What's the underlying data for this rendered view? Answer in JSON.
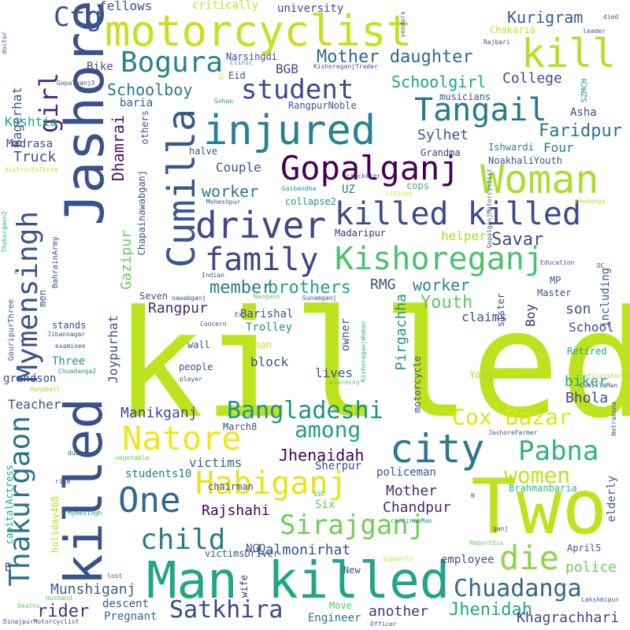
{
  "words": [
    {
      "text": "killed",
      "color": "#bde21e"
    },
    {
      "text": "Two",
      "color": "#bde21e"
    },
    {
      "text": "Man killed",
      "color": "#21a685"
    },
    {
      "text": "Jashore",
      "color": "#3b518b"
    },
    {
      "text": "killed",
      "color": "#3a528b"
    },
    {
      "text": "motorcyclist",
      "color": "#c6e021"
    },
    {
      "text": "injured",
      "color": "#26828e"
    },
    {
      "text": "kill",
      "color": "#b5de2b"
    },
    {
      "text": "Cumilla",
      "color": "#38588c"
    },
    {
      "text": "Gopalganj",
      "color": "#440154"
    },
    {
      "text": "Woman",
      "color": "#addc30"
    },
    {
      "text": "killed killed",
      "color": "#3e4a89"
    },
    {
      "text": "Kishoreganj",
      "color": "#4ac16d"
    },
    {
      "text": "driver",
      "color": "#3f4788"
    },
    {
      "text": "Tangail",
      "color": "#2a788e"
    },
    {
      "text": "family",
      "color": "#414487"
    },
    {
      "text": "Mymensingh",
      "color": "#3b528b"
    },
    {
      "text": "Thakurgaon",
      "color": "#2c728e"
    },
    {
      "text": "Bogura",
      "color": "#26828e"
    },
    {
      "text": "student",
      "color": "#3e4989"
    },
    {
      "text": "city",
      "color": "#2a788e"
    },
    {
      "text": "Habiganj",
      "color": "#e7e419"
    },
    {
      "text": "Natore",
      "color": "#f1e51d"
    },
    {
      "text": "One",
      "color": "#31688e"
    },
    {
      "text": "Sirajganj",
      "color": "#6ece58"
    },
    {
      "text": "Cox Bazar",
      "color": "#dfe318"
    },
    {
      "text": "Bangladeshi",
      "color": "#21918c"
    },
    {
      "text": "Chuadanga",
      "color": "#31688e"
    },
    {
      "text": "die",
      "color": "#8bd646"
    },
    {
      "text": "Satkhira",
      "color": "#3e4989"
    },
    {
      "text": "Ctg",
      "color": "#3b528b"
    },
    {
      "text": "Pabna",
      "color": "#2fb47c"
    },
    {
      "text": "child",
      "color": "#287c8e"
    },
    {
      "text": "women",
      "color": "#c2df23"
    },
    {
      "text": "among",
      "color": "#1fa088"
    },
    {
      "text": "girl",
      "color": "#482979"
    },
    {
      "text": "Jhenaidah",
      "color": "#440154"
    },
    {
      "text": "Mother daughter",
      "color": "#31688e"
    },
    {
      "text": "Kurigram",
      "color": "#35608d"
    },
    {
      "text": "Schoolgirl",
      "color": "#20a386"
    },
    {
      "text": "College",
      "color": "#3d4e8a"
    },
    {
      "text": "Faridpur",
      "color": "#2c728e"
    },
    {
      "text": "Schoolboy",
      "color": "#2a788e"
    },
    {
      "text": "Sylhet",
      "color": "#39568c"
    },
    {
      "text": "Dhamrai",
      "color": "#48186a"
    },
    {
      "text": "worker",
      "color": "#2a788e"
    },
    {
      "text": "Savar",
      "color": "#3e4989"
    },
    {
      "text": "member",
      "color": "#2a788e"
    },
    {
      "text": "brothers",
      "color": "#1f9e89"
    },
    {
      "text": "RMG",
      "color": "#3b528b"
    },
    {
      "text": "worker",
      "color": "#26828e"
    },
    {
      "text": "Youth",
      "color": "#5ec962"
    },
    {
      "text": "Rangpur",
      "color": "#482878"
    },
    {
      "text": "Gazipur",
      "color": "#6ece58"
    },
    {
      "text": "Pirgachha",
      "color": "#21918c"
    },
    {
      "text": "Manikganj",
      "color": "#3e4989"
    },
    {
      "text": "Mother",
      "color": "#472c7a"
    },
    {
      "text": "Chandpur",
      "color": "#482878"
    },
    {
      "text": "Rajshahi",
      "color": "#440154"
    },
    {
      "text": "Lalmonirhat",
      "color": "#3b528b"
    },
    {
      "text": "Munshiganj",
      "color": "#355f8d"
    },
    {
      "text": "rider",
      "color": "#46337e"
    },
    {
      "text": "Jhenidah",
      "color": "#22a884"
    },
    {
      "text": "another",
      "color": "#46327e"
    },
    {
      "text": "Khagrachhari",
      "color": "#414487"
    },
    {
      "text": "Engineer",
      "color": "#2c728e"
    },
    {
      "text": "Pregnant",
      "color": "#31688e"
    },
    {
      "text": "descent",
      "color": "#39568c"
    },
    {
      "text": "employee",
      "color": "#3a538b"
    },
    {
      "text": "police",
      "color": "#6ece58"
    },
    {
      "text": "Teacher",
      "color": "#3b528b"
    },
    {
      "text": "Bhola",
      "color": "#3f4889"
    },
    {
      "text": "biker",
      "color": "#20a486"
    },
    {
      "text": "School",
      "color": "#3e4c8a"
    },
    {
      "text": "son",
      "color": "#3b528b"
    },
    {
      "text": "including",
      "color": "#39568c"
    },
    {
      "text": "Boy",
      "color": "#472d7b"
    },
    {
      "text": "Truck",
      "color": "#3b528b"
    },
    {
      "text": "Bagerhat",
      "color": "#38598c"
    },
    {
      "text": "Kushtia",
      "color": "#22a884"
    },
    {
      "text": "Madrasa",
      "color": "#3e4989"
    },
    {
      "text": "BGB",
      "color": "#3e4989"
    },
    {
      "text": "Bike",
      "color": "#3e4c8a"
    },
    {
      "text": "fellows",
      "color": "#3b528b"
    },
    {
      "text": "baria",
      "color": "#39568c"
    },
    {
      "text": "Couple",
      "color": "#3b528b"
    },
    {
      "text": "UZ",
      "color": "#2a788e"
    },
    {
      "text": "Four",
      "color": "#2a788e"
    },
    {
      "text": "Eid",
      "color": "#3e4989"
    },
    {
      "text": "university",
      "color": "#3e4989"
    },
    {
      "text": "critically",
      "color": "#c8e020"
    },
    {
      "text": "Chakaria",
      "color": "#c2df23"
    },
    {
      "text": "Narsingdi",
      "color": "#3e4989"
    },
    {
      "text": "cops",
      "color": "#2fb47c"
    },
    {
      "text": "Grandma",
      "color": "#414487"
    },
    {
      "text": "Ishwardi",
      "color": "#26828e"
    },
    {
      "text": "NoakhaliYouth",
      "color": "#3b528b"
    },
    {
      "text": "Asha",
      "color": "#3e4989"
    },
    {
      "text": "musicians",
      "color": "#3b528b"
    },
    {
      "text": "RangpurNoble",
      "color": "#3b528b"
    },
    {
      "text": "helper",
      "color": "#addc30"
    },
    {
      "text": "collapse2",
      "color": "#21918c"
    },
    {
      "text": "Madaripur",
      "color": "#472d7b"
    },
    {
      "text": "Seven",
      "color": "#3b528b"
    },
    {
      "text": "Barishal",
      "color": "#3b528b"
    },
    {
      "text": "Trolley",
      "color": "#21918c"
    },
    {
      "text": "claims",
      "color": "#3b528b"
    },
    {
      "text": "owner",
      "color": "#3b528b"
    },
    {
      "text": "block",
      "color": "#3b528b"
    },
    {
      "text": "lives",
      "color": "#39568c"
    },
    {
      "text": "Oman",
      "color": "#c8e020"
    },
    {
      "text": "wall",
      "color": "#3b528b"
    },
    {
      "text": "people",
      "color": "#3b528b"
    },
    {
      "text": "Three",
      "color": "#21918c"
    },
    {
      "text": "grandson",
      "color": "#3b528b"
    },
    {
      "text": "Joypurhat",
      "color": "#3b528b"
    },
    {
      "text": "March8",
      "color": "#3b528b"
    },
    {
      "text": "victims",
      "color": "#31688e"
    },
    {
      "text": "students10",
      "color": "#2a788e"
    },
    {
      "text": "chairman",
      "color": "#3b528b"
    },
    {
      "text": "Sherpur",
      "color": "#3b528b"
    },
    {
      "text": "policeman",
      "color": "#3b528b"
    },
    {
      "text": "Six",
      "color": "#5ec962"
    },
    {
      "text": "NGO",
      "color": "#3b528b"
    },
    {
      "text": "wife",
      "color": "#472d7b"
    },
    {
      "text": "victimsDriver",
      "color": "#3b528b"
    },
    {
      "text": "New",
      "color": "#3b528b"
    },
    {
      "text": "Move",
      "color": "#5ec962"
    },
    {
      "text": "Retired",
      "color": "#20a486"
    },
    {
      "text": "York",
      "color": "#addc30"
    },
    {
      "text": "Brahmanbaria",
      "color": "#2fb47c"
    },
    {
      "text": "elderly",
      "color": "#3b528b"
    },
    {
      "text": "April5",
      "color": "#3b528b"
    },
    {
      "text": "Master",
      "color": "#3b528b"
    },
    {
      "text": "MP",
      "color": "#3b528b"
    },
    {
      "text": "sister",
      "color": "#3b528b"
    },
    {
      "text": "motorcycle",
      "color": "#3b528b"
    },
    {
      "text": "Chapainawabganj",
      "color": "#3b528b"
    },
    {
      "text": "others",
      "color": "#3b528b"
    },
    {
      "text": "halve",
      "color": "#3b528b"
    },
    {
      "text": "men",
      "color": "#3b528b"
    },
    {
      "text": "stands",
      "color": "#3b528b"
    },
    {
      "text": "Handball",
      "color": "#a0da39"
    },
    {
      "text": "Chuadanga2",
      "color": "#21918c"
    },
    {
      "text": "examinee",
      "color": "#3b528b"
    },
    {
      "text": "Jibannagar",
      "color": "#3b528b"
    },
    {
      "text": "GouripurThree",
      "color": "#3b528b"
    },
    {
      "text": "BahrainArmy",
      "color": "#3b528b"
    },
    {
      "text": "Thakurgaon2",
      "color": "#2fb47c"
    },
    {
      "text": "capitalActress",
      "color": "#20a486"
    },
    {
      "text": "holiday468",
      "color": "#bade28"
    },
    {
      "text": "Mymesingh",
      "color": "#21918c"
    },
    {
      "text": "rise",
      "color": "#3b528b"
    },
    {
      "text": "ducks",
      "color": "#3b528b"
    },
    {
      "text": "vegetable",
      "color": "#5ec962"
    },
    {
      "text": "lost",
      "color": "#3b528b"
    },
    {
      "text": "Husband",
      "color": "#5ec962"
    },
    {
      "text": "Deaths",
      "color": "#5ec962"
    },
    {
      "text": "DinajpurMotorcyclist",
      "color": "#3b528b"
    },
    {
      "text": "Officer",
      "color": "#3b528b"
    },
    {
      "text": "supports",
      "color": "#c8e020"
    },
    {
      "text": "ReportSix",
      "color": "#5ec962"
    },
    {
      "text": "continueMan",
      "color": "#21918c"
    },
    {
      "text": "ganj",
      "color": "#3b528b"
    },
    {
      "text": "Lakshmipur",
      "color": "#3b528b"
    },
    {
      "text": "Netrakona",
      "color": "#3b528b"
    },
    {
      "text": "JashoreFarmer",
      "color": "#3b528b"
    },
    {
      "text": "CumillaMan",
      "color": "#3b528b"
    },
    {
      "text": "districtsFormer",
      "color": "#a0da39"
    },
    {
      "text": "DC",
      "color": "#3b528b"
    },
    {
      "text": "Education",
      "color": "#3b528b"
    },
    {
      "text": "GopalganjMotorcyclist",
      "color": "#3b528b"
    },
    {
      "text": "Chudanga",
      "color": "#bade28"
    },
    {
      "text": "citizen",
      "color": "#c8e020"
    },
    {
      "text": "cricketer",
      "color": "#3b528b"
    },
    {
      "text": "Gaibandha",
      "color": "#21918c"
    },
    {
      "text": "Moheshpur",
      "color": "#3b528b"
    },
    {
      "text": "Indian",
      "color": "#3b528b"
    },
    {
      "text": "nawabganj",
      "color": "#3b528b"
    },
    {
      "text": "Naogaon",
      "color": "#5ec962"
    },
    {
      "text": "Sunamganj",
      "color": "#3b528b"
    },
    {
      "text": "Concern",
      "color": "#3b528b"
    },
    {
      "text": "KishoreganjWoman",
      "color": "#2fb47c"
    },
    {
      "text": "alarming",
      "color": "#5ec962"
    },
    {
      "text": "player",
      "color": "#3b528b"
    },
    {
      "text": "SSC",
      "color": "#2fb47c"
    },
    {
      "text": "Sohan",
      "color": "#21918c"
    },
    {
      "text": "Clinic",
      "color": "#21918c"
    },
    {
      "text": "KishoreganjTrader",
      "color": "#3b528b"
    },
    {
      "text": "Rajbari",
      "color": "#3b528b"
    },
    {
      "text": "vendors",
      "color": "#3b528b"
    },
    {
      "text": "died",
      "color": "#3b528b"
    },
    {
      "text": "leader",
      "color": "#3b528b"
    },
    {
      "text": "SZMCH",
      "color": "#21918c"
    },
    {
      "text": "doctor",
      "color": "#3b528b"
    },
    {
      "text": "Gopalganj3",
      "color": "#3b528b"
    },
    {
      "text": "districtsThree",
      "color": "#c8e020"
    },
    {
      "text": "B",
      "color": "#3b528b"
    },
    {
      "text": "C",
      "color": "#3b528b"
    },
    {
      "text": "N",
      "color": "#3b528b"
    },
    {
      "text": "Ex",
      "color": "#3b528b"
    },
    {
      "text": "Al",
      "color": "#c8e020"
    }
  ]
}
